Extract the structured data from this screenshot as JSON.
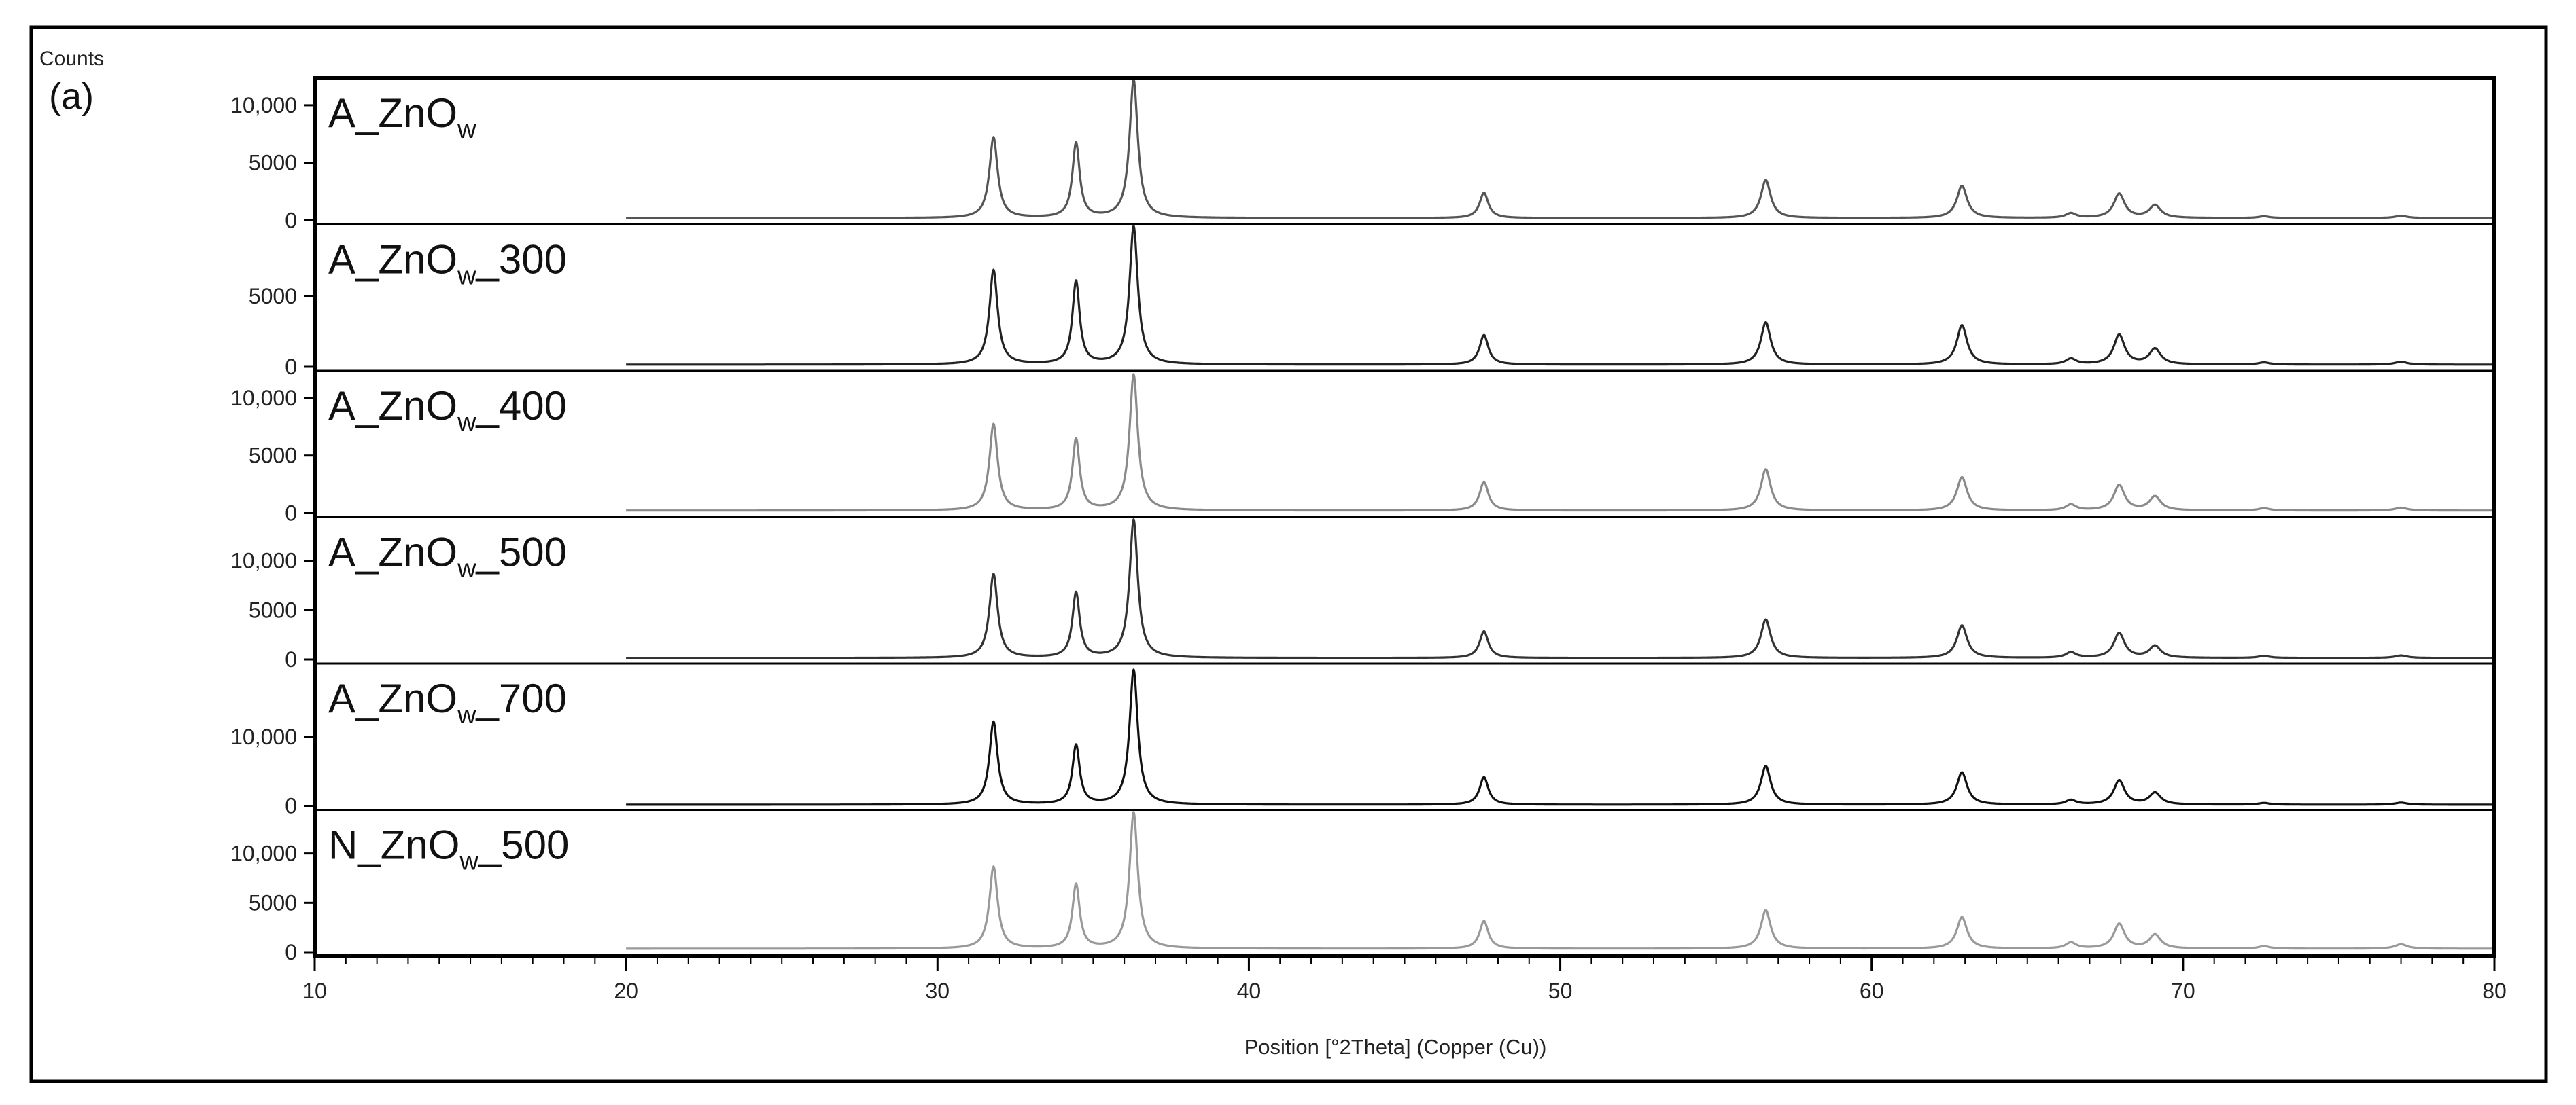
{
  "chart_data": {
    "type": "line",
    "panel_label": "(a)",
    "ylabel": "Counts",
    "xlabel": "Position [°2Theta] (Copper (Cu))",
    "xlim": [
      10,
      80
    ],
    "x_ticks": [
      10,
      20,
      30,
      40,
      50,
      60,
      70,
      80
    ],
    "x_tick_labels": [
      "10",
      "20",
      "30",
      "40",
      "50",
      "60",
      "70",
      "80"
    ],
    "grid": false,
    "peaks_2theta": [
      31.8,
      34.45,
      36.3,
      47.55,
      56.6,
      62.9,
      66.4,
      67.95,
      69.1,
      72.6,
      77.0
    ],
    "series": [
      {
        "name": "A_ZnO",
        "label_main": "A_ZnO",
        "label_sub": "w",
        "label_suffix": "",
        "color": "#555555",
        "ylim": [
          0,
          12000
        ],
        "y_ticks": [
          0,
          5000,
          10000
        ],
        "y_tick_labels": [
          "0",
          "5000",
          "10,000"
        ],
        "background": 200,
        "peaks": [
          7000,
          6500,
          12000,
          2200,
          3300,
          2800,
          400,
          2100,
          1100,
          150,
          200
        ]
      },
      {
        "name": "A_ZnO_300",
        "label_main": "A_ZnO",
        "label_sub": "w",
        "label_suffix": "_300",
        "color": "#222222",
        "ylim": [
          0,
          9800
        ],
        "y_ticks": [
          0,
          5000
        ],
        "y_tick_labels": [
          "0",
          "5000"
        ],
        "background": 150,
        "peaks": [
          6700,
          5900,
          9800,
          2100,
          3000,
          2800,
          400,
          2100,
          1100,
          150,
          200
        ]
      },
      {
        "name": "A_ZnO_400",
        "label_main": "A_ZnO",
        "label_sub": "w",
        "label_suffix": "_400",
        "color": "#8a8a8a",
        "ylim": [
          0,
          12000
        ],
        "y_ticks": [
          0,
          5000,
          10000
        ],
        "y_tick_labels": [
          "0",
          "5000",
          "10,000"
        ],
        "background": 220,
        "peaks": [
          7500,
          6200,
          11800,
          2500,
          3600,
          2900,
          500,
          2200,
          1200,
          200,
          250
        ]
      },
      {
        "name": "A_ZnO_500",
        "label_main": "A_ZnO",
        "label_sub": "w",
        "label_suffix": "_500",
        "color": "#333333",
        "ylim": [
          0,
          14000
        ],
        "y_ticks": [
          0,
          5000,
          10000
        ],
        "y_tick_labels": [
          "0",
          "5000",
          "10,000"
        ],
        "background": 150,
        "peaks": [
          8500,
          6600,
          14000,
          2700,
          3900,
          3300,
          550,
          2500,
          1200,
          200,
          250
        ]
      },
      {
        "name": "A_ZnO_700",
        "label_main": "A_ZnO",
        "label_sub": "w",
        "label_suffix": "_700",
        "color": "#111111",
        "ylim": [
          0,
          20000
        ],
        "y_ticks": [
          0,
          10000
        ],
        "y_tick_labels": [
          "0",
          "10,000"
        ],
        "background": 150,
        "peaks": [
          12000,
          8600,
          19500,
          4000,
          5600,
          4700,
          650,
          3500,
          1700,
          250,
          300
        ]
      },
      {
        "name": "N_ZnO_500",
        "label_main": "N_ZnO",
        "label_sub": "w",
        "label_suffix": "_500",
        "color": "#999999",
        "ylim": [
          0,
          14000
        ],
        "y_ticks": [
          0,
          5000,
          10000
        ],
        "y_tick_labels": [
          "0",
          "5000",
          "10,000"
        ],
        "background": 350,
        "peaks": [
          8300,
          6500,
          13800,
          2800,
          3900,
          3200,
          600,
          2500,
          1400,
          250,
          450
        ]
      }
    ]
  }
}
